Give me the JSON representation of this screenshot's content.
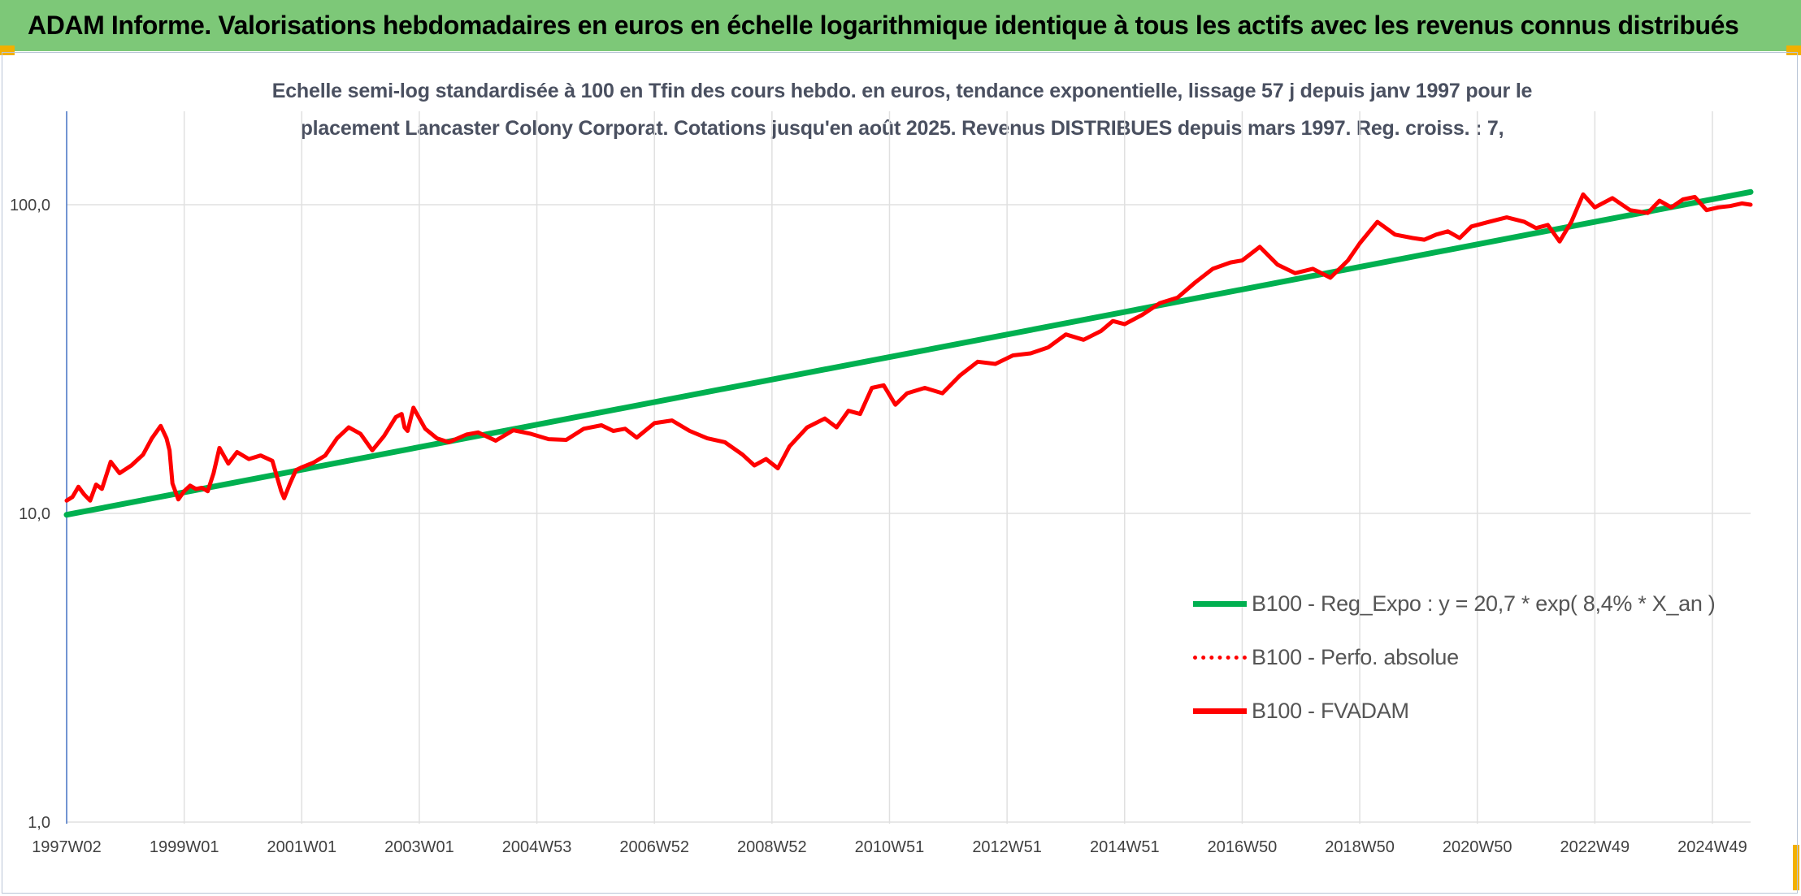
{
  "header": {
    "title": "ADAM Informe. Valorisations hebdomadaires en euros en échelle logarithmique identique à tous les actifs avec les revenus connus distribués"
  },
  "colors": {
    "banner": "#7dc878",
    "corner": "#f2b000",
    "trend": "#00b050",
    "fvadam": "#ff0000",
    "perfo": "#ff0000",
    "grid": "#e0e0e0"
  },
  "chart_data": {
    "type": "line",
    "subtitle_line1": "Echelle semi-log standardisée à 100 en Tfin des cours hebdo. en euros, tendance exponentielle, lissage 57 j depuis janv 1997 pour le",
    "subtitle_line2": "placement Lancaster Colony Corporat. Cotations jusqu'en août 2025. Revenus DISTRIBUES depuis mars 1997. Reg. croiss. : 7,",
    "y_scale": "log",
    "ylim": [
      1,
      100
    ],
    "xlim": [
      1997.0,
      2025.65
    ],
    "y_ticks": [
      {
        "value": 1,
        "label": "1,0"
      },
      {
        "value": 10,
        "label": "10,0"
      },
      {
        "value": 100,
        "label": "100,0"
      }
    ],
    "x_ticks": [
      {
        "value": 1997.0,
        "label": "1997W02"
      },
      {
        "value": 1999.0,
        "label": "1999W01"
      },
      {
        "value": 2001.0,
        "label": "2001W01"
      },
      {
        "value": 2003.0,
        "label": "2003W01"
      },
      {
        "value": 2005.0,
        "label": "2004W53"
      },
      {
        "value": 2007.0,
        "label": "2006W52"
      },
      {
        "value": 2009.0,
        "label": "2008W52"
      },
      {
        "value": 2011.0,
        "label": "2010W51"
      },
      {
        "value": 2013.0,
        "label": "2012W51"
      },
      {
        "value": 2015.0,
        "label": "2014W51"
      },
      {
        "value": 2017.0,
        "label": "2016W50"
      },
      {
        "value": 2019.0,
        "label": "2018W50"
      },
      {
        "value": 2021.0,
        "label": "2020W50"
      },
      {
        "value": 2023.0,
        "label": "2022W49"
      },
      {
        "value": 2025.0,
        "label": "2024W49"
      }
    ],
    "legend_position": "right",
    "series": [
      {
        "name": "B100 - Reg_Expo : y = 20,7 * exp( 8,4% *  X_an )",
        "style": "solid",
        "color": "#00b050",
        "x": [
          1997.0,
          2025.65
        ],
        "y": [
          9.9,
          110
        ]
      },
      {
        "name": "B100 - Perfo. absolue",
        "style": "dotted",
        "color": "#ff0000",
        "x": [],
        "y": []
      },
      {
        "name": "B100 - FVADAM",
        "style": "solid",
        "color": "#ff0000",
        "x": [
          1997.0,
          1997.1,
          1997.2,
          1997.3,
          1997.4,
          1997.5,
          1997.6,
          1997.75,
          1997.9,
          1998.1,
          1998.3,
          1998.45,
          1998.6,
          1998.7,
          1998.75,
          1998.8,
          1998.9,
          1999.0,
          1999.1,
          1999.2,
          1999.3,
          1999.4,
          1999.5,
          1999.6,
          1999.75,
          1999.9,
          2000.1,
          2000.3,
          2000.5,
          2000.65,
          2000.7,
          2000.8,
          2000.9,
          2001.0,
          2001.2,
          2001.4,
          2001.6,
          2001.8,
          2002.0,
          2002.2,
          2002.4,
          2002.6,
          2002.7,
          2002.75,
          2002.8,
          2002.9,
          2003.1,
          2003.3,
          2003.5,
          2003.8,
          2004.0,
          2004.3,
          2004.6,
          2004.9,
          2005.2,
          2005.5,
          2005.8,
          2006.1,
          2006.3,
          2006.5,
          2006.7,
          2007.0,
          2007.3,
          2007.6,
          2007.9,
          2008.2,
          2008.5,
          2008.7,
          2008.9,
          2009.1,
          2009.3,
          2009.6,
          2009.9,
          2010.1,
          2010.3,
          2010.5,
          2010.7,
          2010.9,
          2011.1,
          2011.3,
          2011.6,
          2011.9,
          2012.2,
          2012.5,
          2012.8,
          2013.1,
          2013.4,
          2013.7,
          2014.0,
          2014.3,
          2014.6,
          2014.8,
          2015.0,
          2015.3,
          2015.6,
          2015.9,
          2016.2,
          2016.5,
          2016.8,
          2017.0,
          2017.3,
          2017.6,
          2017.9,
          2018.2,
          2018.5,
          2018.8,
          2019.0,
          2019.3,
          2019.6,
          2019.9,
          2020.1,
          2020.3,
          2020.5,
          2020.7,
          2020.9,
          2021.2,
          2021.5,
          2021.8,
          2022.0,
          2022.2,
          2022.4,
          2022.6,
          2022.8,
          2023.0,
          2023.3,
          2023.6,
          2023.9,
          2024.1,
          2024.3,
          2024.5,
          2024.7,
          2024.9,
          2025.1,
          2025.3,
          2025.5,
          2025.65
        ],
        "y": [
          11,
          11.3,
          12.2,
          11.5,
          11.0,
          12.4,
          12.0,
          14.7,
          13.5,
          14.3,
          15.5,
          17.5,
          19.2,
          17.5,
          16.0,
          12.5,
          11.1,
          11.8,
          12.3,
          12.0,
          12.1,
          11.8,
          13.5,
          16.3,
          14.5,
          15.8,
          15.0,
          15.4,
          14.8,
          11.8,
          11.2,
          12.5,
          13.8,
          14.1,
          14.6,
          15.4,
          17.5,
          19.0,
          18.1,
          16.0,
          17.8,
          20.5,
          21.0,
          19.0,
          18.5,
          22.0,
          18.8,
          17.5,
          17.0,
          18.0,
          18.3,
          17.2,
          18.6,
          18.1,
          17.4,
          17.3,
          18.8,
          19.3,
          18.5,
          18.8,
          17.6,
          19.6,
          20.0,
          18.5,
          17.5,
          17.0,
          15.5,
          14.3,
          15.0,
          14.0,
          16.5,
          19.0,
          20.3,
          19.0,
          21.5,
          21.0,
          25.5,
          26.0,
          22.5,
          24.5,
          25.5,
          24.5,
          28.0,
          31.0,
          30.5,
          32.5,
          33.0,
          34.5,
          38.0,
          36.5,
          39.0,
          42.0,
          41.0,
          44.0,
          48.0,
          50.0,
          56.0,
          62.0,
          65.0,
          66.0,
          73.0,
          64.0,
          60.0,
          62.0,
          58.0,
          66.0,
          75.0,
          88.0,
          80.0,
          78.0,
          77.0,
          80.0,
          82.0,
          78.0,
          85.0,
          88.0,
          91.0,
          88.0,
          84.0,
          86.0,
          76.0,
          88.0,
          108.0,
          98.0,
          105.0,
          96.0,
          94.0,
          103.0,
          98.0,
          104.0,
          106.0,
          96.0,
          98.0,
          99.0,
          101.0,
          100.0
        ]
      }
    ]
  }
}
